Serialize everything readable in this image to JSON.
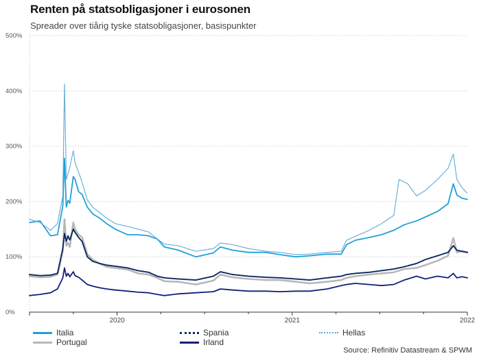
{
  "title": "Renten på statsobligasjoner i eurosonen",
  "subtitle": "Spreader over tiårig tyske statsobligasjoner, basispunkter",
  "source": "Source: Refinitiv Datastream & SPWM",
  "chart_data": {
    "type": "line",
    "title": "Renten på statsobligasjoner i eurosonen",
    "subtitle": "Spreader over tiårig tyske statsobligasjoner, basispunkter",
    "xlabel": "",
    "ylabel": "",
    "ylim": [
      0,
      500
    ],
    "xlim": [
      2019.5,
      2022.0
    ],
    "y_ticks": [
      "0%",
      "100%",
      "200%",
      "300%",
      "400%",
      "500%"
    ],
    "y_tick_values": [
      0,
      100,
      200,
      300,
      400,
      500
    ],
    "x_ticks": [
      "2020",
      "2021",
      "2022"
    ],
    "x_tick_values": [
      2020.0,
      2021.0,
      2022.0
    ],
    "grid": "horizontal dotted",
    "legend_position": "bottom",
    "colors": {
      "Italia": "#1fa0d8",
      "Spania": "#0d2a63",
      "Hellas": "#5aa8d6",
      "Portugal": "#b7b7b7",
      "Irland": "#111e78"
    },
    "series": [
      {
        "name": "Italia",
        "style": "solid",
        "x": [
          2019.5,
          2019.56,
          2019.62,
          2019.66,
          2019.69,
          2019.7,
          2019.71,
          2019.72,
          2019.73,
          2019.75,
          2019.76,
          2019.78,
          2019.8,
          2019.83,
          2019.86,
          2019.9,
          2019.94,
          2019.99,
          2020.06,
          2020.12,
          2020.18,
          2020.23,
          2020.27,
          2020.35,
          2020.45,
          2020.55,
          2020.59,
          2020.66,
          2020.75,
          2020.85,
          2020.93,
          2021.02,
          2021.1,
          2021.2,
          2021.28,
          2021.31,
          2021.36,
          2021.44,
          2021.51,
          2021.58,
          2021.64,
          2021.71,
          2021.76,
          2021.83,
          2021.89,
          2021.92,
          2021.94,
          2021.97,
          2022.0
        ],
        "y": [
          162,
          165,
          138,
          140,
          192,
          278,
          190,
          202,
          197,
          245,
          240,
          218,
          213,
          190,
          178,
          170,
          160,
          150,
          140,
          140,
          138,
          132,
          118,
          112,
          100,
          107,
          118,
          112,
          108,
          108,
          104,
          100,
          102,
          105,
          105,
          122,
          130,
          135,
          140,
          148,
          158,
          165,
          172,
          182,
          196,
          232,
          212,
          206,
          204
        ]
      },
      {
        "name": "Hellas",
        "style": "dotted",
        "x": [
          2019.5,
          2019.56,
          2019.62,
          2019.66,
          2019.69,
          2019.7,
          2019.71,
          2019.72,
          2019.73,
          2019.75,
          2019.76,
          2019.78,
          2019.8,
          2019.83,
          2019.86,
          2019.9,
          2019.94,
          2019.99,
          2020.06,
          2020.12,
          2020.18,
          2020.23,
          2020.27,
          2020.35,
          2020.45,
          2020.55,
          2020.59,
          2020.66,
          2020.75,
          2020.85,
          2020.93,
          2021.02,
          2021.1,
          2021.2,
          2021.28,
          2021.31,
          2021.36,
          2021.44,
          2021.51,
          2021.58,
          2021.61,
          2021.66,
          2021.71,
          2021.76,
          2021.83,
          2021.89,
          2021.92,
          2021.94,
          2021.97,
          2022.0
        ],
        "y": [
          168,
          162,
          148,
          160,
          210,
          413,
          240,
          250,
          262,
          292,
          270,
          253,
          235,
          203,
          190,
          180,
          170,
          160,
          155,
          150,
          145,
          132,
          123,
          120,
          110,
          115,
          125,
          122,
          115,
          110,
          108,
          104,
          105,
          108,
          110,
          130,
          137,
          148,
          160,
          175,
          240,
          232,
          210,
          220,
          240,
          260,
          286,
          240,
          225,
          215
        ]
      },
      {
        "name": "Portugal",
        "style": "solid-thick",
        "x": [
          2019.5,
          2019.56,
          2019.62,
          2019.66,
          2019.69,
          2019.7,
          2019.71,
          2019.72,
          2019.73,
          2019.75,
          2019.76,
          2019.78,
          2019.8,
          2019.83,
          2019.86,
          2019.9,
          2019.94,
          2019.99,
          2020.06,
          2020.12,
          2020.18,
          2020.23,
          2020.27,
          2020.35,
          2020.45,
          2020.55,
          2020.59,
          2020.66,
          2020.75,
          2020.85,
          2020.93,
          2021.02,
          2021.1,
          2021.2,
          2021.28,
          2021.31,
          2021.36,
          2021.44,
          2021.51,
          2021.58,
          2021.64,
          2021.71,
          2021.76,
          2021.83,
          2021.89,
          2021.92,
          2021.94,
          2021.97,
          2022.0
        ],
        "y": [
          65,
          63,
          64,
          68,
          110,
          168,
          120,
          125,
          118,
          162,
          150,
          140,
          135,
          105,
          95,
          88,
          82,
          80,
          77,
          70,
          68,
          62,
          56,
          55,
          50,
          57,
          68,
          63,
          60,
          58,
          58,
          55,
          52,
          55,
          58,
          62,
          65,
          68,
          70,
          72,
          78,
          80,
          85,
          93,
          102,
          134,
          108,
          110,
          108
        ]
      },
      {
        "name": "Spania",
        "style": "dotted-thick",
        "x": [
          2019.5,
          2019.56,
          2019.62,
          2019.66,
          2019.69,
          2019.7,
          2019.71,
          2019.72,
          2019.73,
          2019.75,
          2019.76,
          2019.78,
          2019.8,
          2019.83,
          2019.86,
          2019.9,
          2019.94,
          2019.99,
          2020.06,
          2020.12,
          2020.18,
          2020.23,
          2020.27,
          2020.35,
          2020.45,
          2020.55,
          2020.59,
          2020.66,
          2020.75,
          2020.85,
          2020.93,
          2021.02,
          2021.1,
          2021.2,
          2021.28,
          2021.31,
          2021.36,
          2021.44,
          2021.51,
          2021.58,
          2021.64,
          2021.71,
          2021.76,
          2021.83,
          2021.89,
          2021.92,
          2021.94,
          2021.97,
          2022.0
        ],
        "y": [
          68,
          66,
          67,
          70,
          115,
          142,
          128,
          138,
          130,
          150,
          144,
          135,
          128,
          100,
          92,
          88,
          85,
          83,
          80,
          75,
          72,
          65,
          62,
          60,
          58,
          65,
          73,
          68,
          65,
          63,
          62,
          60,
          58,
          62,
          65,
          68,
          70,
          72,
          75,
          78,
          82,
          88,
          95,
          102,
          108,
          120,
          112,
          110,
          108
        ]
      },
      {
        "name": "Irland",
        "style": "solid",
        "x": [
          2019.5,
          2019.56,
          2019.62,
          2019.66,
          2019.69,
          2019.7,
          2019.71,
          2019.72,
          2019.73,
          2019.75,
          2019.76,
          2019.78,
          2019.8,
          2019.83,
          2019.86,
          2019.9,
          2019.94,
          2019.99,
          2020.06,
          2020.12,
          2020.18,
          2020.23,
          2020.27,
          2020.35,
          2020.45,
          2020.55,
          2020.59,
          2020.66,
          2020.75,
          2020.85,
          2020.93,
          2021.02,
          2021.1,
          2021.2,
          2021.28,
          2021.31,
          2021.36,
          2021.44,
          2021.51,
          2021.58,
          2021.64,
          2021.71,
          2021.76,
          2021.83,
          2021.89,
          2021.92,
          2021.94,
          2021.97,
          2022.0
        ],
        "y": [
          30,
          32,
          35,
          42,
          62,
          80,
          65,
          70,
          64,
          73,
          66,
          63,
          58,
          50,
          47,
          44,
          42,
          40,
          38,
          36,
          35,
          32,
          30,
          33,
          35,
          37,
          42,
          40,
          38,
          38,
          37,
          38,
          38,
          42,
          48,
          50,
          52,
          50,
          48,
          50,
          58,
          65,
          60,
          65,
          62,
          70,
          62,
          64,
          62
        ]
      }
    ]
  },
  "legend": [
    {
      "label": "Italia"
    },
    {
      "label": "Spania"
    },
    {
      "label": "Hellas"
    },
    {
      "label": "Portugal"
    },
    {
      "label": "Irland"
    }
  ]
}
